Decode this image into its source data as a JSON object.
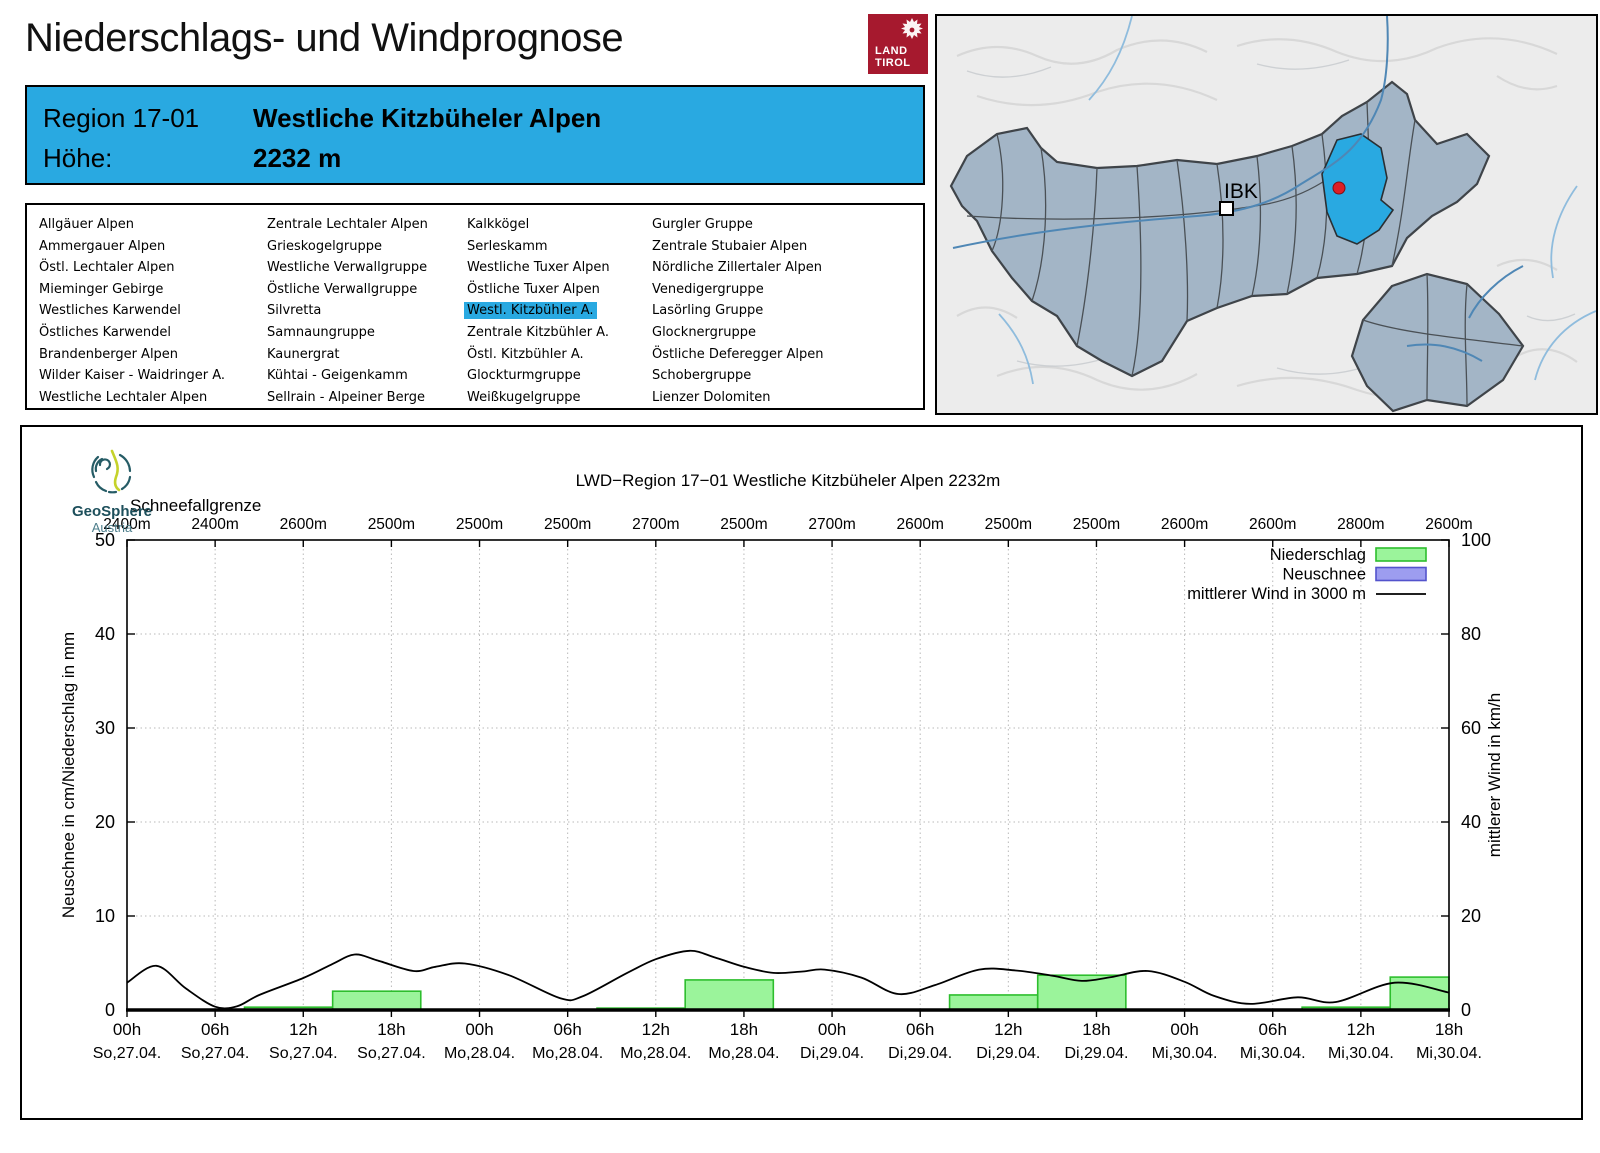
{
  "header": {
    "title": "Niederschlags- und Windprognose",
    "logo": {
      "line1": "LAND",
      "line2": "TIROL"
    }
  },
  "region_header": {
    "region_label": "Region 17-01",
    "region_name": "Westliche Kitzbüheler Alpen",
    "hoehe_label": "Höhe:",
    "hoehe_value": "2232 m"
  },
  "region_list": {
    "selected": {
      "col": 2,
      "row": 4
    },
    "columns": [
      [
        "Allgäuer Alpen",
        "Ammergauer Alpen",
        "Östl. Lechtaler Alpen",
        "Mieminger Gebirge",
        "Westliches Karwendel",
        "Östliches Karwendel",
        "Brandenberger Alpen",
        "Wilder Kaiser - Waidringer A.",
        "Westliche Lechtaler Alpen"
      ],
      [
        "Zentrale Lechtaler Alpen",
        "Grieskogelgruppe",
        "Westliche Verwallgruppe",
        "Östliche Verwallgruppe",
        "Silvretta",
        "Samnaungruppe",
        "Kaunergrat",
        "Kühtai - Geigenkamm",
        "Sellrain - Alpeiner Berge"
      ],
      [
        "Kalkkögel",
        "Serleskamm",
        "Westliche Tuxer Alpen",
        "Östliche Tuxer Alpen",
        "Westl. Kitzbühler A.",
        "Zentrale Kitzbühler A.",
        "Östl. Kitzbühler A.",
        "Glockturmgruppe",
        "Weißkugelgruppe"
      ],
      [
        "Gurgler Gruppe",
        "Zentrale Stubaier Alpen",
        "Nördliche Zillertaler Alpen",
        "Venedigergruppe",
        "Lasörling Gruppe",
        "Glocknergruppe",
        "Östliche Deferegger Alpen",
        "Schobergruppe",
        "Lienzer Dolomiten"
      ]
    ]
  },
  "map": {
    "ibk_label": "IBK"
  },
  "geosphere": {
    "name": "GeoSphere",
    "country": "Austria"
  },
  "colors": {
    "accent_blue": "#29A9E1",
    "tirol_red": "#A6192E",
    "precip_fill": "#9BF49B",
    "precip_stroke": "#2DBE2D",
    "snow_fill": "#9D9DF0",
    "snow_stroke": "#5353CC",
    "wind_line": "#000000",
    "map_region_fill": "#A3B5C6"
  },
  "chart_data": {
    "type": "bar",
    "title": "LWD−Region 17−01 Westliche Kitzbüheler Alpen 2232m",
    "snowline": {
      "label": "Schneefallgrenze",
      "values": [
        "2400m",
        "2400m",
        "2600m",
        "2500m",
        "2500m",
        "2500m",
        "2700m",
        "2500m",
        "2700m",
        "2600m",
        "2500m",
        "2500m",
        "2600m",
        "2600m",
        "2800m",
        "2600m"
      ]
    },
    "x_axis": {
      "hours_span": 90,
      "tick_every_h": 6,
      "times": [
        "00h",
        "06h",
        "12h",
        "18h",
        "00h",
        "06h",
        "12h",
        "18h",
        "00h",
        "06h",
        "12h",
        "18h",
        "00h",
        "06h",
        "12h",
        "18h"
      ],
      "dates": [
        "So,27.04.",
        "So,27.04.",
        "So,27.04.",
        "So,27.04.",
        "Mo,28.04.",
        "Mo,28.04.",
        "Mo,28.04.",
        "Mo,28.04.",
        "Di,29.04.",
        "Di,29.04.",
        "Di,29.04.",
        "Di,29.04.",
        "Mi,30.04.",
        "Mi,30.04.",
        "Mi,30.04.",
        "Mi,30.04."
      ]
    },
    "left_axis": {
      "label": "Neuschnee in cm/Niederschlag in mm",
      "min": 0,
      "max": 50,
      "ticks": [
        0,
        10,
        20,
        30,
        40,
        50
      ]
    },
    "right_axis": {
      "label": "mittlerer Wind in km/h",
      "min": 0,
      "max": 100,
      "ticks": [
        0,
        20,
        40,
        60,
        80,
        100
      ]
    },
    "legend": [
      {
        "label": "Niederschlag",
        "type": "box",
        "fill": "#9BF49B",
        "stroke": "#2DBE2D"
      },
      {
        "label": "Neuschnee",
        "type": "box",
        "fill": "#9D9DF0",
        "stroke": "#5353CC"
      },
      {
        "label": "mittlerer Wind in 3000 m",
        "type": "line",
        "stroke": "#000000"
      }
    ],
    "precip_bars_mm": [
      {
        "from_h": 8,
        "to_h": 14,
        "value": 0.3
      },
      {
        "from_h": 14,
        "to_h": 20,
        "value": 2.0
      },
      {
        "from_h": 32,
        "to_h": 38,
        "value": 0.2
      },
      {
        "from_h": 38,
        "to_h": 44,
        "value": 3.2
      },
      {
        "from_h": 56,
        "to_h": 62,
        "value": 1.6
      },
      {
        "from_h": 62,
        "to_h": 68,
        "value": 3.7
      },
      {
        "from_h": 80,
        "to_h": 86,
        "value": 0.3
      },
      {
        "from_h": 86,
        "to_h": 90,
        "value": 3.5
      }
    ],
    "neuschnee_bars_cm": [],
    "wind_kmh": [
      [
        0,
        5.8
      ],
      [
        2,
        9.4
      ],
      [
        4,
        4.6
      ],
      [
        6,
        0.7
      ],
      [
        7.5,
        0.8
      ],
      [
        9,
        3.2
      ],
      [
        12,
        6.8
      ],
      [
        14,
        9.8
      ],
      [
        15.5,
        11.8
      ],
      [
        17,
        10.6
      ],
      [
        19.5,
        8.3
      ],
      [
        21,
        9.2
      ],
      [
        23,
        9.9
      ],
      [
        26,
        7.4
      ],
      [
        29.5,
        2.5
      ],
      [
        31,
        2.9
      ],
      [
        34,
        7.8
      ],
      [
        36,
        10.8
      ],
      [
        38.3,
        12.6
      ],
      [
        40,
        11.2
      ],
      [
        42,
        9.2
      ],
      [
        44,
        7.9
      ],
      [
        46,
        8.2
      ],
      [
        47.5,
        8.6
      ],
      [
        50,
        6.9
      ],
      [
        52.5,
        3.4
      ],
      [
        55,
        5.3
      ],
      [
        58,
        8.6
      ],
      [
        60.5,
        8.4
      ],
      [
        63,
        7.3
      ],
      [
        65,
        6.2
      ],
      [
        67,
        7.0
      ],
      [
        69.5,
        8.3
      ],
      [
        72,
        6.0
      ],
      [
        74,
        3.0
      ],
      [
        76.5,
        1.3
      ],
      [
        79.7,
        2.7
      ],
      [
        82.3,
        1.7
      ],
      [
        86.3,
        5.8
      ],
      [
        90,
        3.7
      ]
    ]
  }
}
